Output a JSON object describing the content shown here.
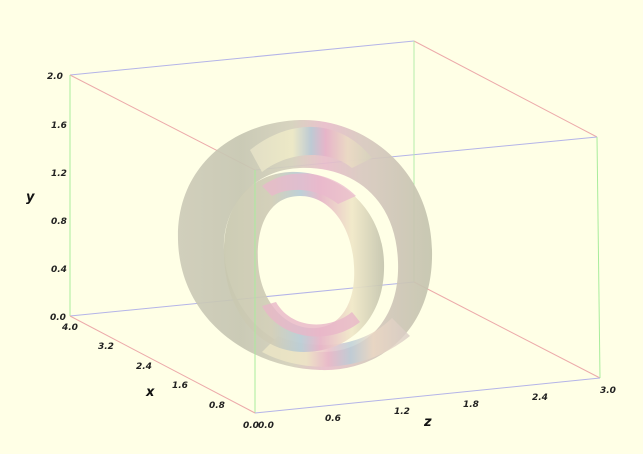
{
  "chart_data": {
    "type": "3d-surface",
    "axes": {
      "x": {
        "label": "x",
        "range": [
          0.0,
          4.0
        ],
        "ticks": [
          "0.0",
          "0.8",
          "1.6",
          "2.4",
          "3.2",
          "4.0"
        ]
      },
      "y": {
        "label": "y",
        "range": [
          0.0,
          2.0
        ],
        "ticks": [
          "0.0",
          "0.4",
          "0.8",
          "1.2",
          "1.6",
          "2.0"
        ]
      },
      "z": {
        "label": "z",
        "range": [
          0.0,
          3.0
        ],
        "ticks": [
          "0.0",
          "0.6",
          "1.2",
          "1.8",
          "2.4",
          "3.0"
        ]
      }
    },
    "surfaces": [
      {
        "name": "outer-ring"
      },
      {
        "name": "inner-ring"
      }
    ],
    "colors": {
      "background": "#ffffe6",
      "x_edges": "#e8a0a0",
      "y_edges": "#a8e8a0",
      "z_edges": "#a8a8e8",
      "surface_base": "#c8c8b0",
      "surface_pink": "#e8b4c8",
      "surface_blue": "#b4c8d8",
      "surface_cream": "#ece8c8"
    }
  }
}
